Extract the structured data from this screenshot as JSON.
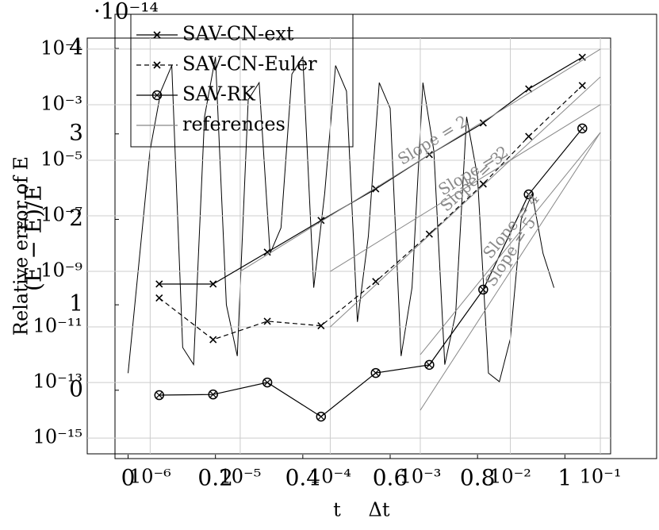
{
  "chart_data": [
    {
      "type": "loglog",
      "xlabel": "Δt",
      "ylabel": "Relative error of E",
      "xlim": [
        2e-07,
        0.13
      ],
      "ylim": [
        2.7e-16,
        0.25
      ],
      "log_x": true,
      "log_y": true,
      "grid": true,
      "xticks": [
        {
          "value": 1e-06,
          "label": "10⁻⁶"
        },
        {
          "value": 1e-05,
          "label": "10⁻⁵"
        },
        {
          "value": 0.0001,
          "label": "10⁻⁴"
        },
        {
          "value": 0.001,
          "label": "10⁻³"
        },
        {
          "value": 0.01,
          "label": "10⁻²"
        },
        {
          "value": 0.1,
          "label": "10⁻¹"
        }
      ],
      "yticks": [
        {
          "value": 1e-15,
          "label": "10⁻¹⁵"
        },
        {
          "value": 1e-13,
          "label": "10⁻¹³"
        },
        {
          "value": 1e-11,
          "label": "10⁻¹¹"
        },
        {
          "value": 1e-09,
          "label": "10⁻⁹"
        },
        {
          "value": 1e-07,
          "label": "10⁻⁷"
        },
        {
          "value": 1e-05,
          "label": "10⁻⁵"
        },
        {
          "value": 0.001,
          "label": "10⁻³"
        },
        {
          "value": 0.1,
          "label": "10⁻¹"
        }
      ],
      "series": [
        {
          "name": "SAV-CN-ext",
          "color": "#000000",
          "marker": "x",
          "dashed": false,
          "x": [
            1.26e-06,
            5e-06,
            2e-05,
            7.9e-05,
            0.00032,
            0.00126,
            0.005,
            0.016,
            0.063
          ],
          "values": [
            3.5e-10,
            3.5e-10,
            4.9e-09,
            6.8e-08,
            9.3e-07,
            1.6e-05,
            0.00022,
            0.0037,
            0.051
          ]
        },
        {
          "name": "SAV-CN-Euler",
          "color": "#000000",
          "marker": "x",
          "dashed": true,
          "x": [
            1.26e-06,
            5e-06,
            2e-05,
            7.9e-05,
            0.00032,
            0.00126,
            0.005,
            0.016,
            0.063
          ],
          "values": [
            1.1e-10,
            3.5e-12,
            1.6e-11,
            1.1e-11,
            4.3e-10,
            2.2e-08,
            1.4e-06,
            7.2e-05,
            0.0049
          ]
        },
        {
          "name": "SAV-RK",
          "color": "#000000",
          "marker": "otimes",
          "dashed": false,
          "x": [
            1.26e-06,
            5e-06,
            2e-05,
            7.9e-05,
            0.00032,
            0.00126,
            0.005,
            0.016,
            0.063
          ],
          "values": [
            3.5e-14,
            3.7e-14,
            1e-13,
            5.9e-15,
            2.2e-13,
            4.3e-13,
            2.2e-10,
            5.9e-07,
            0.00014
          ]
        },
        {
          "name": "references",
          "color": "#888888",
          "marker": "none",
          "dashed": false,
          "lines": [
            {
              "label": "Slope = 2",
              "x": [
                1e-05,
                0.1
              ],
              "values": [
                1e-09,
                0.1
              ]
            },
            {
              "label": "Slope = 2",
              "x": [
                0.0001,
                0.1
              ],
              "values": [
                1e-09,
                0.001
              ]
            },
            {
              "label": "Slope = 3",
              "x": [
                0.0001,
                0.1
              ],
              "values": [
                1e-11,
                0.01
              ]
            },
            {
              "label": "Slope = 4",
              "x": [
                0.001,
                0.1
              ],
              "values": [
                1e-12,
                0.0001
              ]
            },
            {
              "label": "Slope = 5",
              "x": [
                0.001,
                0.1
              ],
              "values": [
                1e-14,
                0.0001
              ]
            }
          ]
        }
      ]
    },
    {
      "type": "line",
      "xlabel": "t",
      "ylabel": "(E − Ẽ)/E",
      "multiplier": "·10⁻¹⁴",
      "xlim": [
        -0.03,
        1.21
      ],
      "ylim": [
        -0.8,
        4.4
      ],
      "xticks": [
        0,
        0.2,
        0.4,
        0.6,
        0.8,
        1
      ],
      "yticks": [
        0,
        1,
        2,
        3,
        4
      ],
      "color": "#000000",
      "x": [
        0,
        0.025,
        0.05,
        0.075,
        0.1,
        0.125,
        0.15,
        0.175,
        0.2,
        0.225,
        0.25,
        0.275,
        0.3,
        0.325,
        0.35,
        0.375,
        0.4,
        0.425,
        0.45,
        0.475,
        0.5,
        0.525,
        0.55,
        0.575,
        0.6,
        0.625,
        0.65,
        0.675,
        0.7,
        0.725,
        0.75,
        0.775,
        0.8,
        0.825,
        0.85,
        0.875,
        0.9,
        0.925,
        0.95,
        0.975
      ],
      "values": [
        0.2,
        1.5,
        2.8,
        3.5,
        3.8,
        0.5,
        0.3,
        3.2,
        3.9,
        1.0,
        0.4,
        3.4,
        3.6,
        1.6,
        1.9,
        3.7,
        3.9,
        1.2,
        2.3,
        3.8,
        3.5,
        0.8,
        1.8,
        3.6,
        3.3,
        0.4,
        1.2,
        3.6,
        2.8,
        0.3,
        0.9,
        3.2,
        2.5,
        0.2,
        0.1,
        0.6,
        2.0,
        2.3,
        1.6,
        1.2
      ]
    }
  ]
}
